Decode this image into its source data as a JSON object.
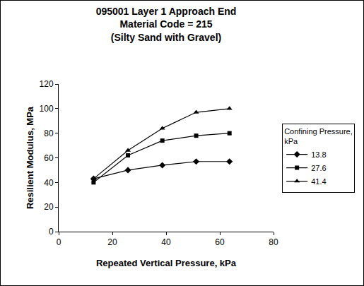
{
  "chart_data": {
    "type": "line",
    "title": [
      "095001 Layer 1 Approach End",
      "Material Code = 215",
      "(Silty Sand with Gravel)"
    ],
    "x_label": "Repeated Vertical Pressure, kPa",
    "y_label": "Resilient Modulus, MPa",
    "legend_title": [
      "Confining Pressure,",
      "kPa"
    ],
    "x": [
      13,
      25.8,
      38.6,
      51.2,
      63.6
    ],
    "series": [
      {
        "name": "13.8",
        "color": "#000000",
        "marker": "diamond",
        "values": [
          43,
          50,
          54,
          57,
          57
        ]
      },
      {
        "name": "27.6",
        "color": "#000000",
        "marker": "square",
        "values": [
          40,
          62,
          74,
          78,
          80
        ]
      },
      {
        "name": "41.4",
        "color": "#000000",
        "marker": "triangle-up",
        "values": [
          43,
          66,
          84,
          97,
          100
        ]
      }
    ],
    "xlim": [
      0,
      80
    ],
    "xticks": [
      0,
      20,
      40,
      60,
      80
    ],
    "ylim": [
      0,
      120
    ],
    "yticks": [
      0,
      20,
      40,
      60,
      80,
      100,
      120
    ],
    "grid": false,
    "legend": "right"
  }
}
